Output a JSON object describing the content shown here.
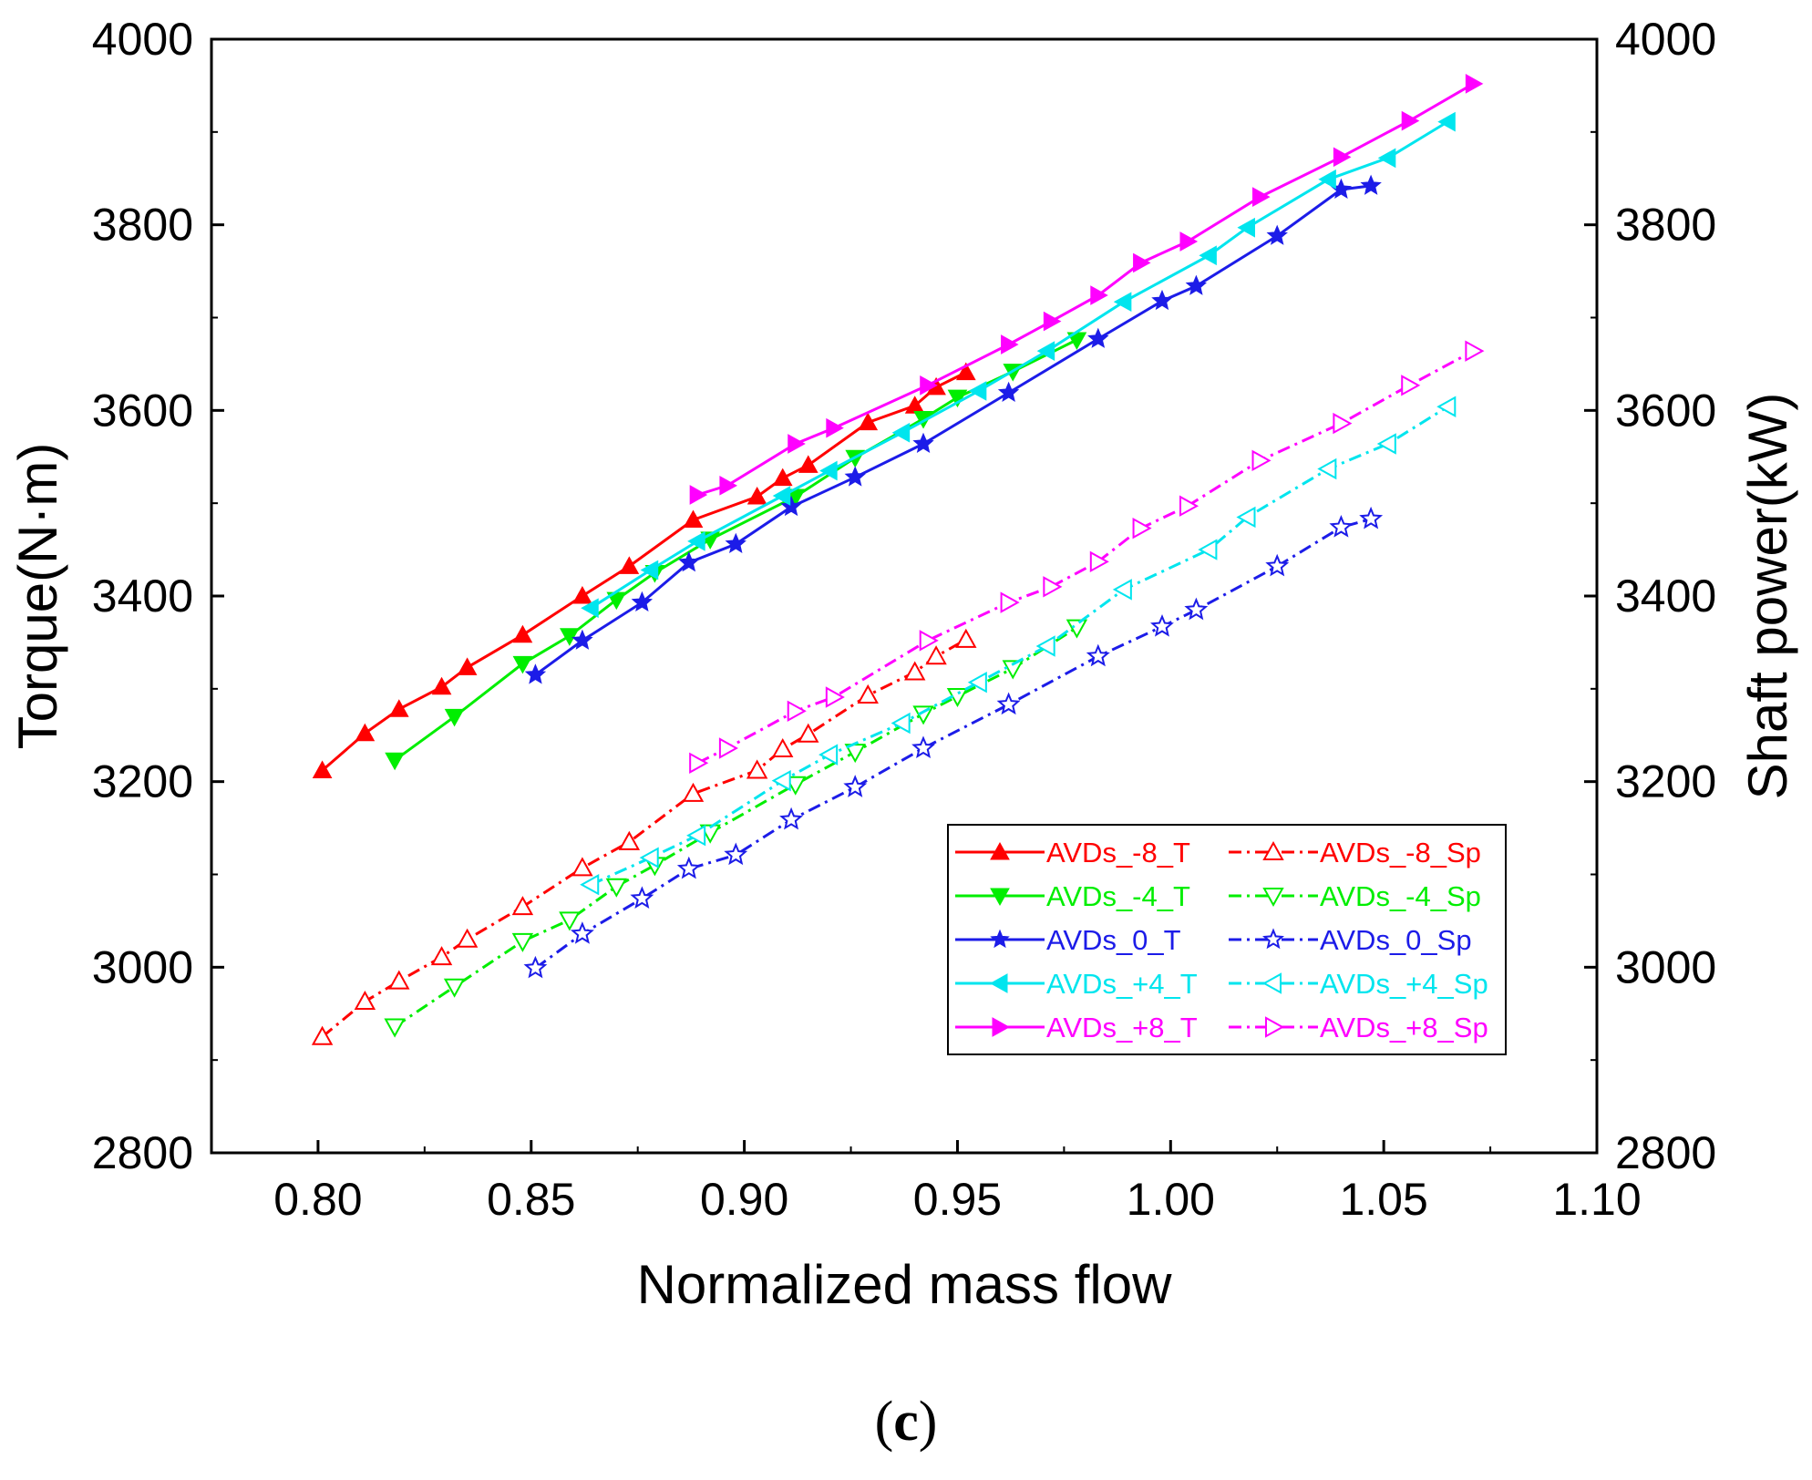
{
  "chart_data": {
    "type": "line",
    "xlabel": "Normalized mass flow",
    "ylabel": "Torque(N·m)",
    "y2label": "Shaft power(kW)",
    "xlim": [
      0.775,
      1.1
    ],
    "ylim": [
      2800,
      4000
    ],
    "y2lim": [
      2800,
      4000
    ],
    "xticks": [
      "0.80",
      "0.85",
      "0.90",
      "0.95",
      "1.00",
      "1.05",
      "1.10"
    ],
    "yticks": [
      "2800",
      "3000",
      "3200",
      "3400",
      "3600",
      "3800",
      "4000"
    ],
    "y2ticks": [
      "2800",
      "3000",
      "3200",
      "3400",
      "3600",
      "3800",
      "4000"
    ],
    "legend_position": "lower-right",
    "series": [
      {
        "name": "AVDs_-8_T",
        "color": "#ff0000",
        "marker": "triangle-up",
        "filled": true,
        "dash": "solid",
        "x": [
          0.801,
          0.811,
          0.819,
          0.829,
          0.835,
          0.848,
          0.862,
          0.873,
          0.888,
          0.903,
          0.909,
          0.915,
          0.929,
          0.94,
          0.945,
          0.952
        ],
        "y": [
          3212,
          3252,
          3278,
          3302,
          3323,
          3358,
          3400,
          3432,
          3482,
          3507,
          3527,
          3541,
          3587,
          3605,
          3625,
          3641
        ]
      },
      {
        "name": "AVDs_-8_Sp",
        "color": "#ff0000",
        "marker": "triangle-up",
        "filled": false,
        "dash": "dashdot",
        "x": [
          0.801,
          0.811,
          0.819,
          0.829,
          0.835,
          0.848,
          0.862,
          0.873,
          0.888,
          0.903,
          0.909,
          0.915,
          0.929,
          0.94,
          0.945,
          0.952
        ],
        "y": [
          2925,
          2963,
          2985,
          3011,
          3030,
          3065,
          3107,
          3135,
          3187,
          3212,
          3235,
          3251,
          3293,
          3318,
          3335,
          3353
        ]
      },
      {
        "name": "AVDs_-4_T",
        "color": "#00ee00",
        "marker": "triangle-down",
        "filled": true,
        "dash": "solid",
        "x": [
          0.818,
          0.832,
          0.848,
          0.859,
          0.87,
          0.879,
          0.892,
          0.912,
          0.926,
          0.942,
          0.95,
          0.963,
          0.978
        ],
        "y": [
          3223,
          3270,
          3327,
          3357,
          3396,
          3425,
          3461,
          3507,
          3549,
          3591,
          3614,
          3642,
          3676
        ]
      },
      {
        "name": "AVDs_-4_Sp",
        "color": "#00ee00",
        "marker": "triangle-down",
        "filled": false,
        "dash": "dashdot",
        "x": [
          0.818,
          0.832,
          0.848,
          0.859,
          0.87,
          0.879,
          0.892,
          0.912,
          0.926,
          0.942,
          0.95,
          0.963,
          0.978
        ],
        "y": [
          2936,
          2979,
          3028,
          3051,
          3087,
          3110,
          3145,
          3197,
          3232,
          3273,
          3292,
          3322,
          3366
        ]
      },
      {
        "name": "AVDs_0_T",
        "color": "#1c1ce8",
        "marker": "star",
        "filled": true,
        "dash": "solid",
        "x": [
          0.851,
          0.862,
          0.876,
          0.887,
          0.898,
          0.911,
          0.926,
          0.942,
          0.962,
          0.983,
          0.998,
          1.006,
          1.025,
          1.04,
          1.047
        ],
        "y": [
          3315,
          3352,
          3393,
          3436,
          3456,
          3496,
          3528,
          3564,
          3619,
          3677,
          3718,
          3734,
          3788,
          3838,
          3842
        ]
      },
      {
        "name": "AVDs_0_Sp",
        "color": "#1c1ce8",
        "marker": "star",
        "filled": false,
        "dash": "dashdot",
        "x": [
          0.851,
          0.862,
          0.876,
          0.887,
          0.898,
          0.911,
          0.926,
          0.942,
          0.962,
          0.983,
          0.998,
          1.006,
          1.025,
          1.04,
          1.047
        ],
        "y": [
          2999,
          3036,
          3074,
          3106,
          3121,
          3159,
          3194,
          3236,
          3283,
          3335,
          3367,
          3385,
          3432,
          3474,
          3483
        ]
      },
      {
        "name": "AVDs_+4_T",
        "color": "#00e5ee",
        "marker": "triangle-left",
        "filled": true,
        "dash": "solid",
        "x": [
          0.864,
          0.878,
          0.889,
          0.909,
          0.92,
          0.937,
          0.955,
          0.971,
          0.989,
          1.009,
          1.018,
          1.037,
          1.051,
          1.065
        ],
        "y": [
          3387,
          3428,
          3459,
          3508,
          3535,
          3576,
          3621,
          3664,
          3717,
          3767,
          3797,
          3849,
          3872,
          3911
        ]
      },
      {
        "name": "AVDs_+4_Sp",
        "color": "#00e5ee",
        "marker": "triangle-left",
        "filled": false,
        "dash": "dashdot",
        "x": [
          0.864,
          0.878,
          0.889,
          0.909,
          0.92,
          0.937,
          0.955,
          0.971,
          0.989,
          1.009,
          1.018,
          1.037,
          1.051,
          1.065
        ],
        "y": [
          3089,
          3118,
          3142,
          3201,
          3229,
          3263,
          3307,
          3346,
          3407,
          3450,
          3485,
          3537,
          3564,
          3604
        ]
      },
      {
        "name": "AVDs_+8_T",
        "color": "#ff00ff",
        "marker": "triangle-right",
        "filled": true,
        "dash": "solid",
        "x": [
          0.889,
          0.896,
          0.912,
          0.921,
          0.943,
          0.962,
          0.972,
          0.983,
          0.993,
          1.004,
          1.021,
          1.04,
          1.056,
          1.071
        ],
        "y": [
          3509,
          3519,
          3564,
          3581,
          3627,
          3671,
          3696,
          3724,
          3759,
          3782,
          3830,
          3873,
          3912,
          3952
        ]
      },
      {
        "name": "AVDs_+8_Sp",
        "color": "#ff00ff",
        "marker": "triangle-right",
        "filled": false,
        "dash": "dashdot",
        "x": [
          0.889,
          0.896,
          0.912,
          0.921,
          0.943,
          0.962,
          0.972,
          0.983,
          0.993,
          1.004,
          1.021,
          1.04,
          1.056,
          1.071
        ],
        "y": [
          3220,
          3236,
          3276,
          3291,
          3352,
          3393,
          3410,
          3437,
          3473,
          3497,
          3546,
          3586,
          3627,
          3664
        ]
      }
    ],
    "legend_columns": [
      [
        "AVDs_-8_T",
        "AVDs_-4_T",
        "AVDs_0_T",
        "AVDs_+4_T",
        "AVDs_+8_T"
      ],
      [
        "AVDs_-8_Sp",
        "AVDs_-4_Sp",
        "AVDs_0_Sp",
        "AVDs_+4_Sp",
        "AVDs_+8_Sp"
      ]
    ]
  },
  "caption": {
    "open": "(",
    "letter": "c",
    "close": ")"
  }
}
